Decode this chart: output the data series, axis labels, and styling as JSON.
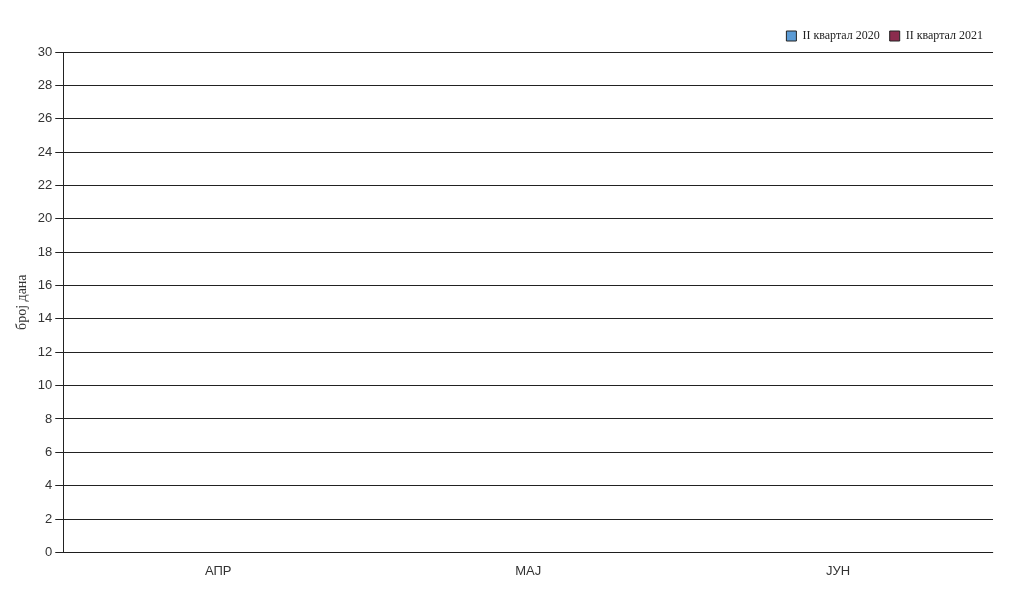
{
  "chart_data": {
    "type": "bar",
    "ylabel": "број дана",
    "categories": [
      "АПР",
      "МАЈ",
      "ЈУН"
    ],
    "series": [
      {
        "name": "II квартал 2020",
        "color": "#5b9bd5",
        "values": [
          0,
          0,
          0
        ]
      },
      {
        "name": "II квартал 2021",
        "color": "#8b2c4e",
        "values": [
          0,
          0,
          0
        ]
      }
    ],
    "ylim": [
      0,
      30
    ],
    "yticks": [
      0,
      2,
      4,
      6,
      8,
      10,
      12,
      14,
      16,
      18,
      20,
      22,
      24,
      26,
      28,
      30
    ],
    "grid": "y",
    "legend": "top right"
  }
}
